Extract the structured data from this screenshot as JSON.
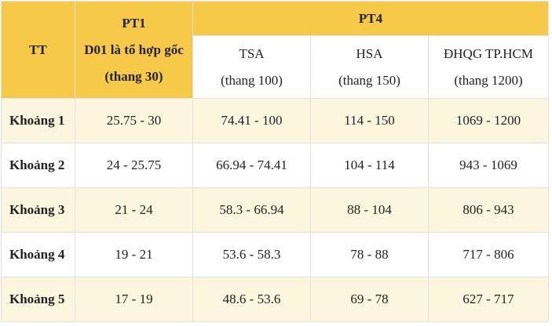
{
  "table": {
    "header": {
      "tt": "TT",
      "pt1": [
        "PT1",
        "D01 là tổ hợp gốc",
        "(thang 30)"
      ],
      "pt4": "PT4",
      "subcolumns": [
        {
          "name": "TSA",
          "scale": "(thang 100)"
        },
        {
          "name": "HSA",
          "scale": "(thang 150)"
        },
        {
          "name": "ĐHQG TP.HCM",
          "scale": "(thang 1200)"
        }
      ]
    },
    "rows": [
      [
        "Khoảng 1",
        "25.75 - 30",
        "74.41 - 100",
        "114 - 150",
        "1069 - 1200"
      ],
      [
        "Khoảng 2",
        "24 - 25.75",
        "66.94 - 74.41",
        "104 - 114",
        "943 - 1069"
      ],
      [
        "Khoảng 3",
        "21 - 24",
        "58.3 - 66.94",
        "88 - 104",
        "806 - 943"
      ],
      [
        "Khoảng 4",
        "19 - 21",
        "53.6 - 58.3",
        "78 - 88",
        "717 - 806"
      ],
      [
        "Khoảng 5",
        "17 - 19",
        "48.6 - 53.6",
        "69 - 78",
        "627 - 717"
      ]
    ]
  }
}
